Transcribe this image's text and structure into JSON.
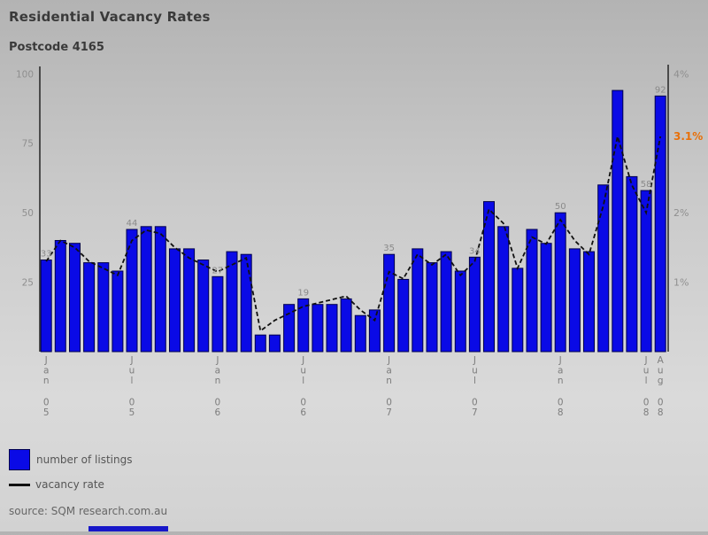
{
  "header": {
    "title": "Residential Vacancy Rates",
    "subtitle": "Postcode 4165"
  },
  "legend": {
    "0": {
      "label": "number of listings",
      "color": "#0a0ae6"
    },
    "1": {
      "label": "vacancy rate",
      "color": "#111111"
    }
  },
  "source": "source: SQM research.com.au",
  "chart_data": {
    "type": "bar+line",
    "title": "Residential Vacancy Rates",
    "subtitle": "Postcode 4165",
    "x": [
      "Jan 05",
      "Feb 05",
      "Mar 05",
      "Apr 05",
      "May 05",
      "Jun 05",
      "Jul 05",
      "Aug 05",
      "Sep 05",
      "Oct 05",
      "Nov 05",
      "Dec 05",
      "Jan 06",
      "Feb 06",
      "Mar 06",
      "Apr 06",
      "May 06",
      "Jun 06",
      "Jul 06",
      "Aug 06",
      "Sep 06",
      "Oct 06",
      "Nov 06",
      "Dec 06",
      "Jan 07",
      "Feb 07",
      "Mar 07",
      "Apr 07",
      "May 07",
      "Jun 07",
      "Jul 07",
      "Aug 07",
      "Sep 07",
      "Oct 07",
      "Nov 07",
      "Dec 07",
      "Jan 08",
      "Feb 08",
      "Mar 08",
      "Apr 08",
      "May 08",
      "Jun 08",
      "Jul 08",
      "Aug 08"
    ],
    "series": [
      {
        "name": "number of listings",
        "type": "bar",
        "color": "#0a0ae6",
        "values": [
          33,
          40,
          39,
          32,
          32,
          29,
          44,
          45,
          45,
          37,
          37,
          33,
          27,
          36,
          35,
          6,
          6,
          17,
          19,
          17,
          17,
          19,
          13,
          15,
          35,
          26,
          37,
          32,
          36,
          29,
          34,
          54,
          45,
          30,
          44,
          39,
          50,
          37,
          36,
          60,
          94,
          63,
          58,
          92
        ]
      },
      {
        "name": "vacancy rate",
        "type": "line",
        "color": "#111111",
        "unit": "%",
        "values": [
          1.3,
          1.6,
          1.5,
          1.3,
          1.2,
          1.1,
          1.6,
          1.75,
          1.7,
          1.5,
          1.35,
          1.25,
          1.15,
          1.25,
          1.35,
          0.3,
          0.45,
          0.55,
          0.65,
          0.7,
          0.75,
          0.8,
          0.6,
          0.45,
          1.15,
          1.05,
          1.4,
          1.25,
          1.4,
          1.1,
          1.3,
          2.05,
          1.85,
          1.2,
          1.65,
          1.55,
          1.9,
          1.6,
          1.4,
          2.1,
          3.1,
          2.4,
          2.0,
          3.1
        ]
      }
    ],
    "bar_labels": {
      "Jan 05": "33",
      "Jul 05": "44",
      "Jan 06": "27",
      "Jul 06": "19",
      "Jan 07": "35",
      "Jul 07": "34",
      "Jan 08": "50",
      "Jul 08": "58",
      "Aug 08": "92"
    },
    "left_axis": {
      "ticks": [
        100,
        75,
        50,
        25
      ]
    },
    "right_axis": {
      "ticks": [
        "4%",
        "2%",
        "1%"
      ],
      "tick_values": [
        4,
        2,
        1
      ],
      "current_label": "3.1%",
      "current_value": 3.1,
      "current_color": "#e8700a"
    },
    "x_tick_labels": [
      "Jan 05",
      "Jul 05",
      "Jan 06",
      "Jul 06",
      "Jan 07",
      "Jul 07",
      "Jan 08",
      "Jul 08",
      "Aug 08"
    ],
    "ylim_left": [
      0,
      102
    ],
    "ylim_right_pct": [
      0,
      4.1
    ],
    "grid": false,
    "legend_position": "bottom-left"
  }
}
